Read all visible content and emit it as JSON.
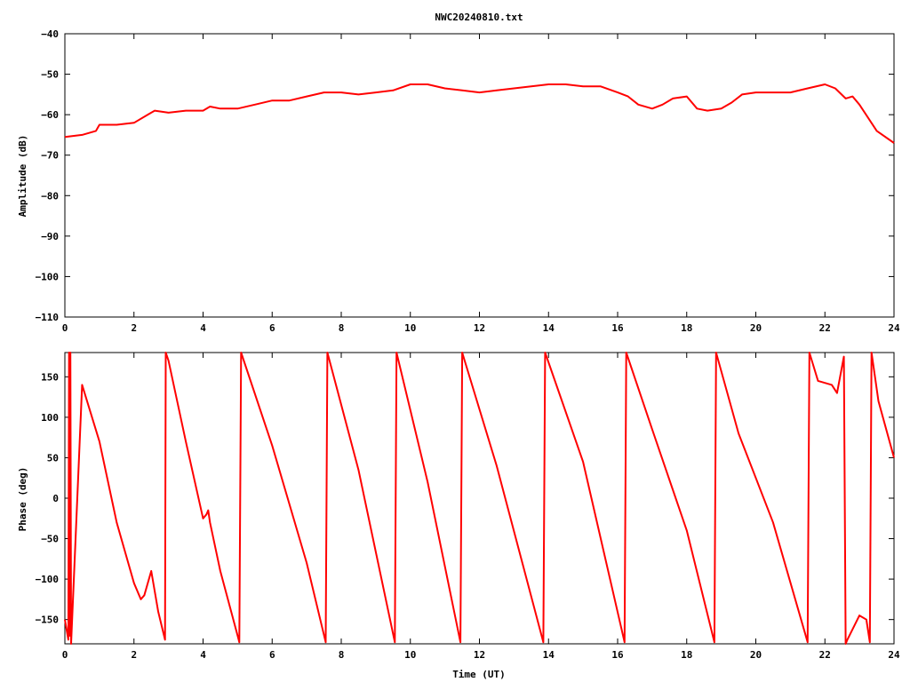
{
  "title": "NWC20240810.txt",
  "line_color": "#ff0000",
  "chart_data": [
    {
      "type": "line",
      "ylabel": "Amplitude (dB)",
      "xlabel": "",
      "xlim": [
        0,
        24
      ],
      "ylim": [
        -110,
        -40
      ],
      "xticks": [
        0,
        2,
        4,
        6,
        8,
        10,
        12,
        14,
        16,
        18,
        20,
        22,
        24
      ],
      "yticks": [
        -110,
        -100,
        -90,
        -80,
        -70,
        -60,
        -50,
        -40
      ],
      "grid": false,
      "series": [
        {
          "x": [
            0,
            0.5,
            0.9,
            1.0,
            1.5,
            2.0,
            2.4,
            2.6,
            3.0,
            3.5,
            4.0,
            4.2,
            4.5,
            5.0,
            5.5,
            6.0,
            6.5,
            7.0,
            7.5,
            8.0,
            8.5,
            9.0,
            9.5,
            10.0,
            10.5,
            11.0,
            11.5,
            12.0,
            12.5,
            13.0,
            13.5,
            14.0,
            14.5,
            15.0,
            15.5,
            16.0,
            16.3,
            16.6,
            17.0,
            17.3,
            17.6,
            18.0,
            18.3,
            18.6,
            19.0,
            19.3,
            19.6,
            20.0,
            20.5,
            21.0,
            21.5,
            22.0,
            22.3,
            22.6,
            22.8,
            23.0,
            23.5,
            24.0
          ],
          "y": [
            -65.5,
            -65,
            -64,
            -62.5,
            -62.5,
            -62,
            -60,
            -59,
            -59.5,
            -59,
            -59,
            -58,
            -58.5,
            -58.5,
            -57.5,
            -56.5,
            -56.5,
            -55.5,
            -54.5,
            -54.5,
            -55,
            -54.5,
            -54,
            -52.5,
            -52.5,
            -53.5,
            -54,
            -54.5,
            -54,
            -53.5,
            -53,
            -52.5,
            -52.5,
            -53,
            -53,
            -54.5,
            -55.5,
            -57.5,
            -58.5,
            -57.5,
            -56,
            -55.5,
            -58.5,
            -59,
            -58.5,
            -57,
            -55,
            -54.5,
            -54.5,
            -54.5,
            -53.5,
            -52.5,
            -53.5,
            -56,
            -55.5,
            -57.5,
            -64,
            -67
          ]
        }
      ]
    },
    {
      "type": "line",
      "ylabel": "Phase (deg)",
      "xlabel": "Time (UT)",
      "xlim": [
        0,
        24
      ],
      "ylim": [
        -180,
        180
      ],
      "xticks": [
        0,
        2,
        4,
        6,
        8,
        10,
        12,
        14,
        16,
        18,
        20,
        22,
        24
      ],
      "yticks": [
        -150,
        -100,
        -50,
        0,
        50,
        100,
        150
      ],
      "grid": false,
      "series": [
        {
          "x": [
            0,
            0.1,
            0.12,
            0.14,
            0.16,
            0.18,
            0.5,
            1.0,
            1.5,
            2.0,
            2.2,
            2.3,
            2.5,
            2.7,
            2.9,
            2.92,
            3.0,
            3.5,
            4.0,
            4.1,
            4.15,
            4.2,
            4.5,
            5.0,
            5.05,
            5.1,
            6.0,
            7.0,
            7.55,
            7.6,
            8.5,
            9.55,
            9.6,
            10.5,
            11.45,
            11.5,
            12.5,
            13.85,
            13.9,
            15.0,
            16.2,
            16.25,
            17.0,
            18.0,
            18.8,
            18.85,
            19.5,
            20.5,
            21.5,
            21.55,
            21.8,
            22.2,
            22.35,
            22.55,
            22.6,
            22.65,
            23.0,
            23.2,
            23.3,
            23.35,
            23.55,
            24.0
          ],
          "y": [
            -150,
            -175,
            180,
            -170,
            180,
            -180,
            140,
            70,
            -30,
            -105,
            -125,
            -120,
            -90,
            -140,
            -175,
            180,
            170,
            70,
            -25,
            -20,
            -15,
            -30,
            -90,
            -170,
            -178,
            180,
            65,
            -80,
            -178,
            180,
            35,
            -178,
            180,
            20,
            -178,
            180,
            40,
            -178,
            180,
            45,
            -178,
            180,
            85,
            -40,
            -178,
            180,
            80,
            -30,
            -178,
            180,
            145,
            140,
            130,
            175,
            -180,
            -175,
            -145,
            -150,
            -178,
            180,
            120,
            50
          ]
        }
      ]
    }
  ]
}
